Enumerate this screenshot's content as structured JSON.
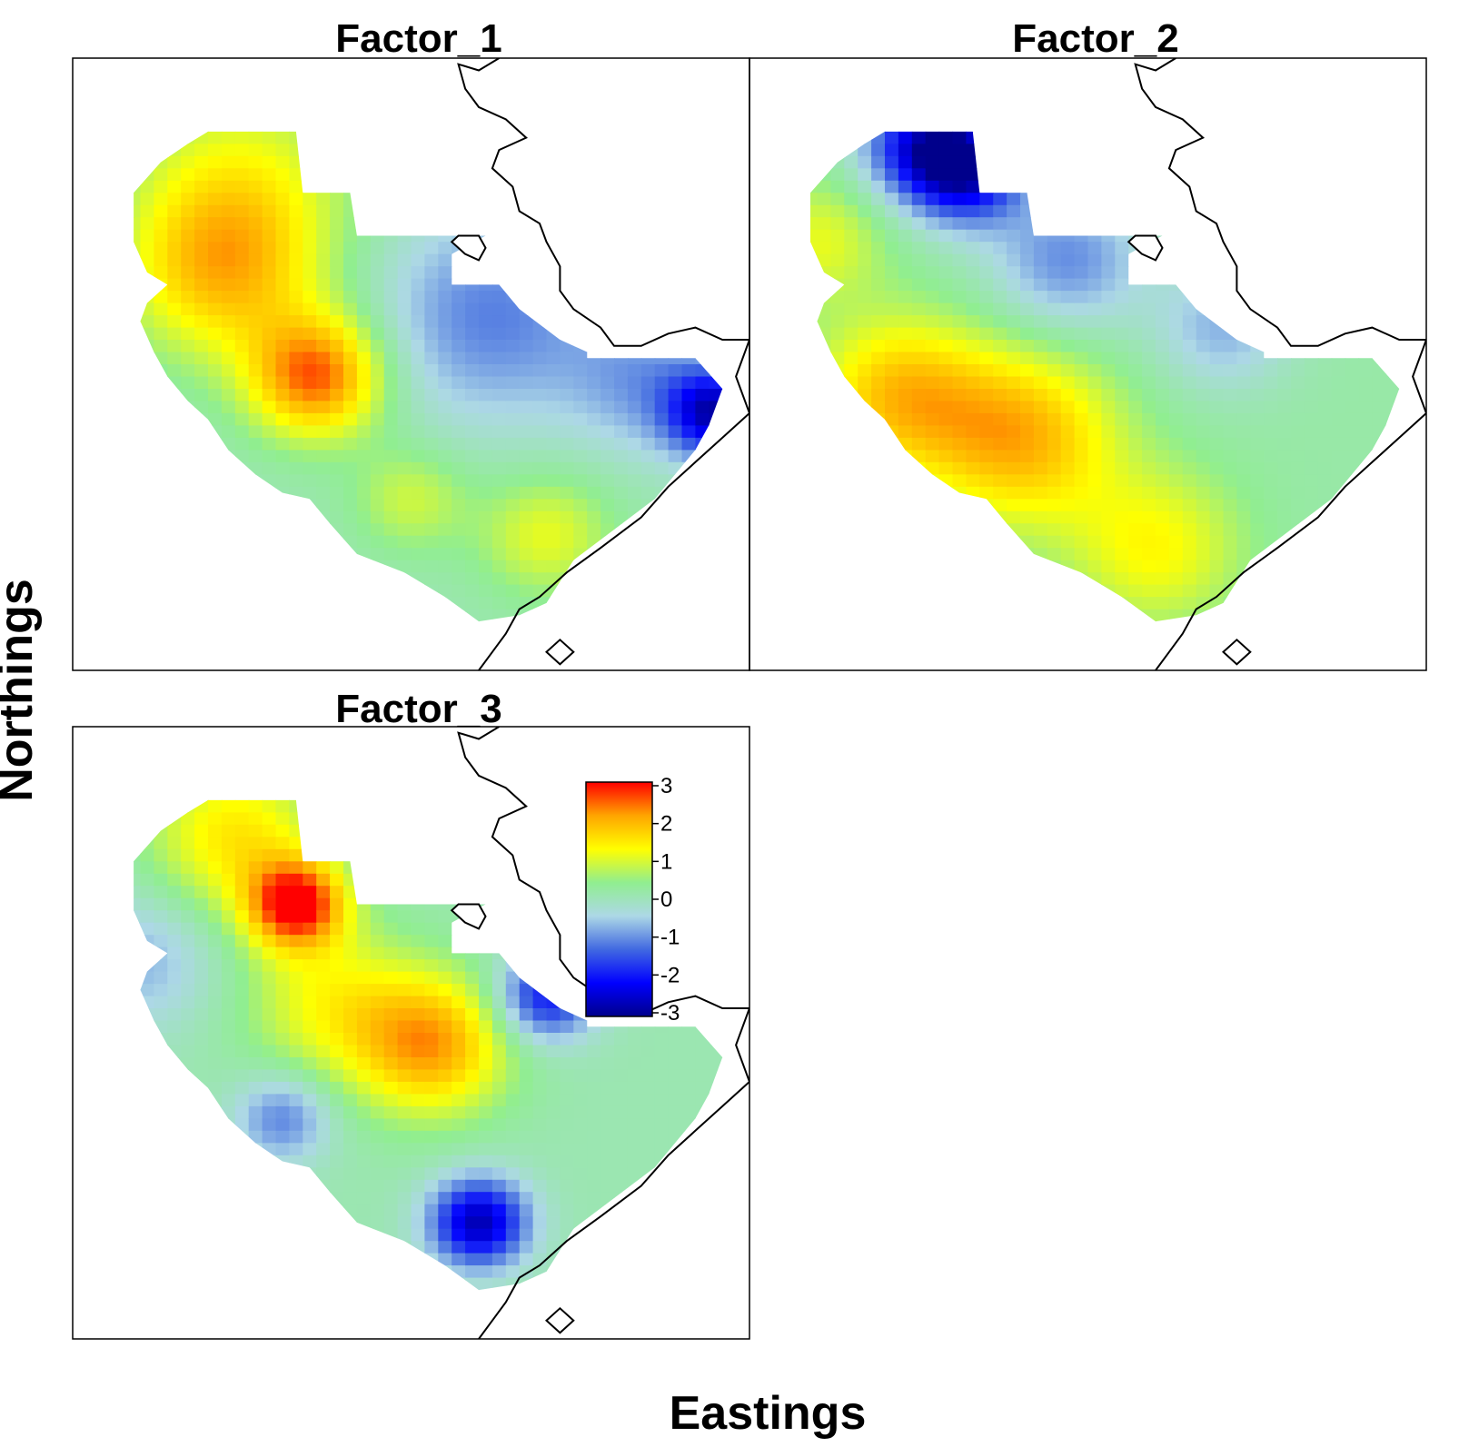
{
  "figure": {
    "x_axis_label": "Eastings",
    "y_axis_label": "Northings"
  },
  "panels": [
    {
      "title": "Factor_1",
      "variant": 0
    },
    {
      "title": "Factor_2",
      "variant": 1
    },
    {
      "title": "Factor_3",
      "variant": 2
    }
  ],
  "legend": {
    "ticks": [
      "3",
      "2",
      "1",
      "0",
      "-1",
      "-2",
      "-3"
    ],
    "range": [
      -3,
      3
    ],
    "colors": [
      "#00008b",
      "#0000ff",
      "#4169e1",
      "#add8e6",
      "#90ee90",
      "#ffff00",
      "#ffa500",
      "#ff0000"
    ]
  },
  "chart_data": {
    "type": "heatmap",
    "layout": "facet-grid 2x2 (3 panels)",
    "series": [
      {
        "name": "Factor_1"
      },
      {
        "name": "Factor_2"
      },
      {
        "name": "Factor_3"
      }
    ],
    "color_scale_range": [
      -3,
      3
    ],
    "colorbar_ticks": [
      3,
      2,
      1,
      0,
      -1,
      -2,
      -3
    ]
  }
}
